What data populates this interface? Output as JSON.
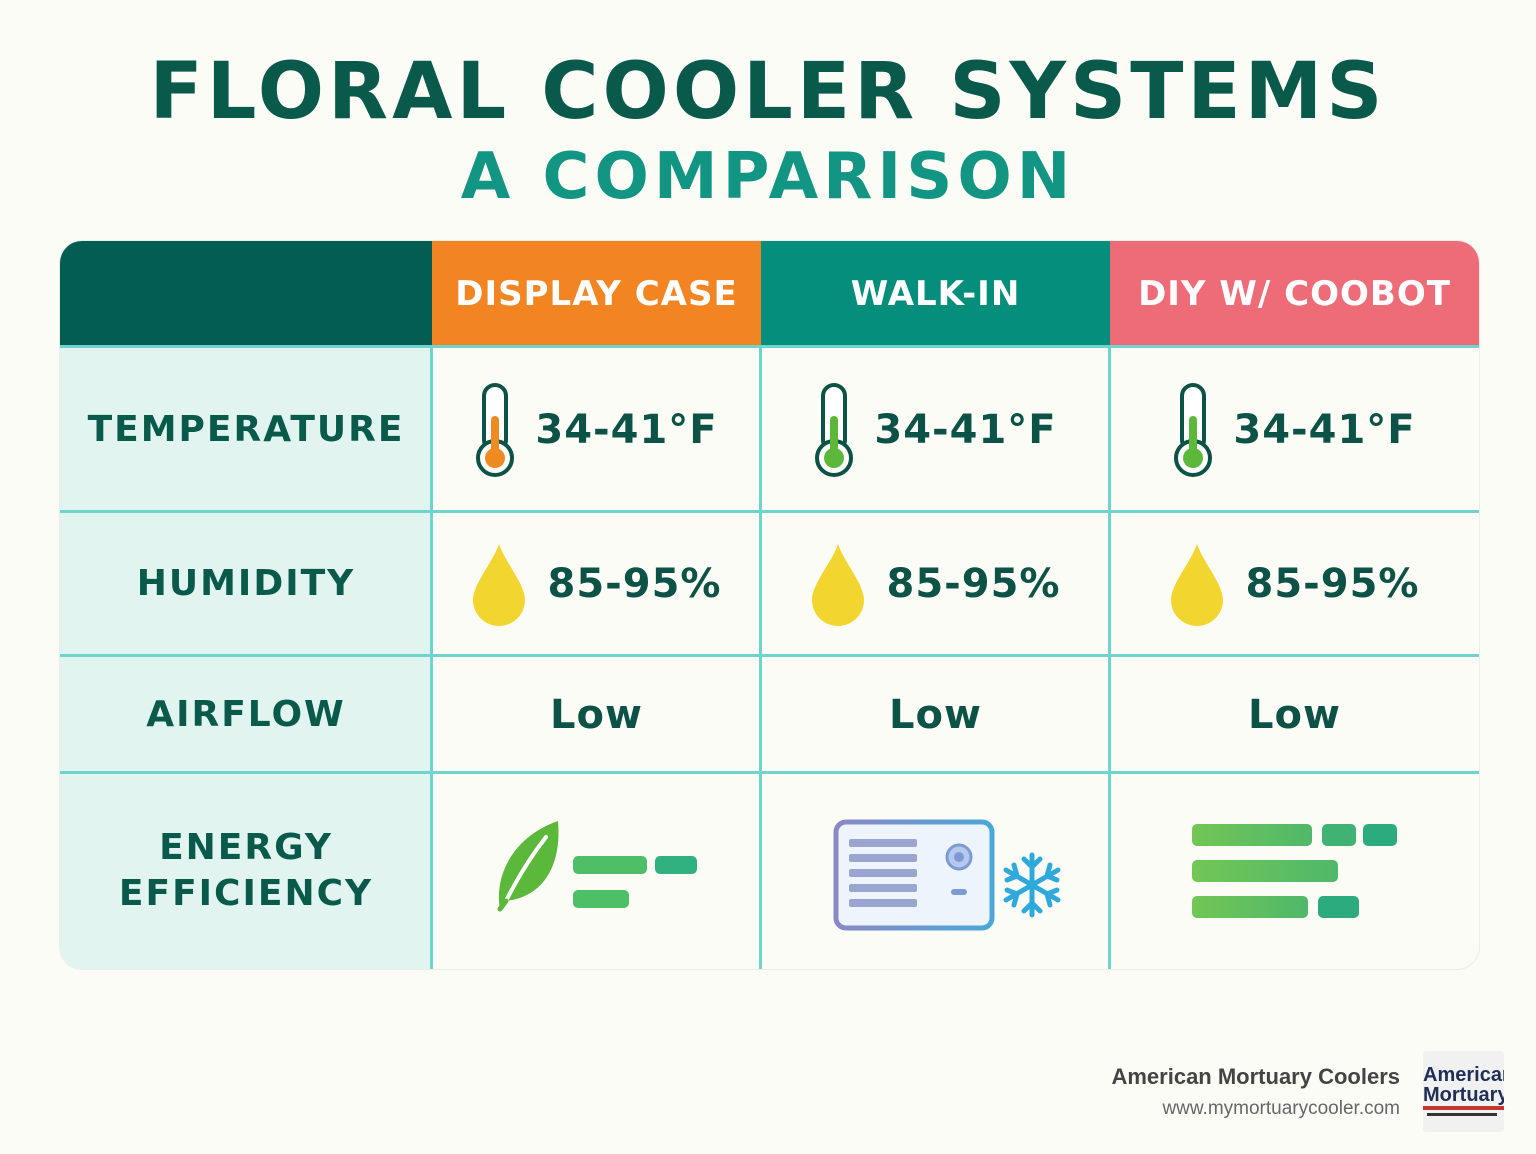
{
  "title": "FLORAL COOLER SYSTEMS",
  "subtitle": "A COMPARISON",
  "colors": {
    "title": "#0a5a4c",
    "subtitle": "#129582",
    "header_blank": "#035d52",
    "display_case": "#f28422",
    "walk_in": "#048e7b",
    "diy": "#ee6b78",
    "row_label_bg": "#e1f4ef",
    "grid": "#6fd5cc"
  },
  "table": {
    "columns": [
      "DISPLAY CASE",
      "WALK-IN",
      "DIY W/ COOBOT"
    ],
    "rows": [
      {
        "label": "TEMPERATURE",
        "values": [
          "34-41°F",
          "34-41°F",
          "34-41°F"
        ],
        "icons": [
          "thermometer-orange-icon",
          "thermometer-green-icon",
          "thermometer-green-icon"
        ]
      },
      {
        "label": "HUMIDITY",
        "values": [
          "85-95%",
          "85-95%",
          "85-95%"
        ],
        "icons": [
          "water-drop-icon",
          "water-drop-icon",
          "water-drop-icon"
        ]
      },
      {
        "label": "AIRFLOW",
        "values": [
          "Low",
          "Low",
          "Low"
        ]
      },
      {
        "label_line1": "ENERGY",
        "label_line2": "EFFICIENCY",
        "icons": [
          "leaf-icon",
          "air-conditioner-icon",
          "bars-icon"
        ]
      }
    ]
  },
  "footer": {
    "company": "American Mortuary Coolers",
    "url": "www.mymortuarycooler.com",
    "logo_line1": "American",
    "logo_line2": "Mortuary"
  }
}
